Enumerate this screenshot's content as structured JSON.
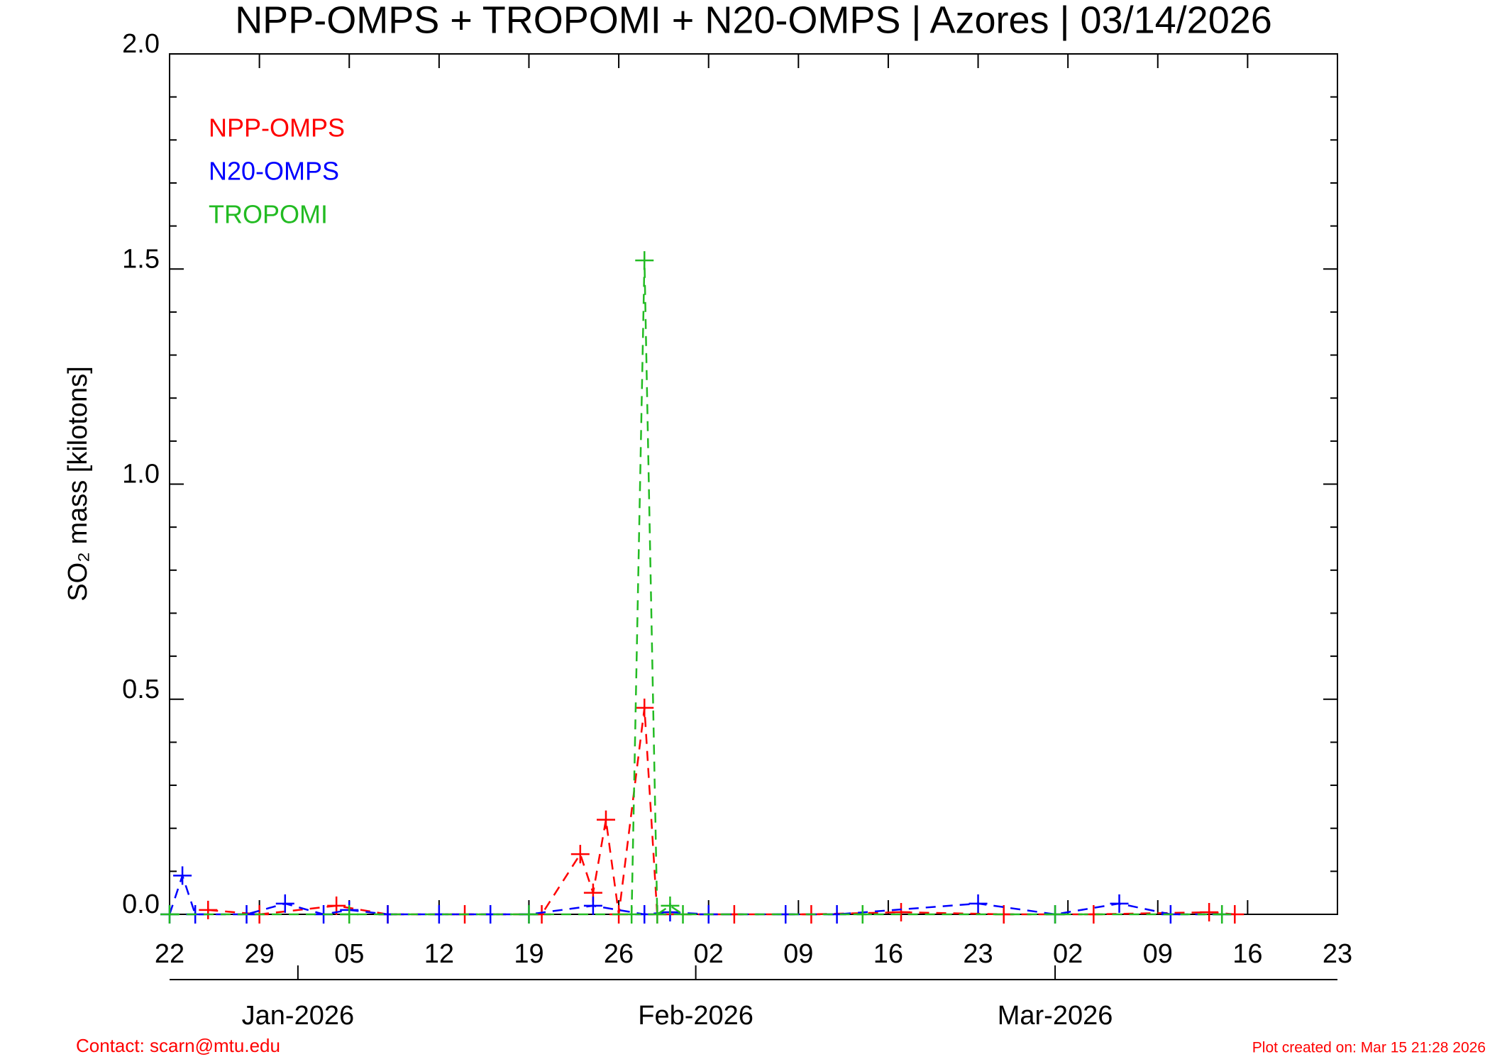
{
  "chart_data": {
    "type": "line",
    "title": "NPP-OMPS + TROPOMI + N20-OMPS | Azores | 03/14/2026",
    "y_label": "SO₂ mass [kilotons]",
    "contact": "Contact: scarn@mtu.edu",
    "created": "Plot created on: Mar 15 21:28 2026",
    "xlim": [
      "2025-12-22",
      "2026-03-23"
    ],
    "xticks": [
      {
        "value": "2025-12-22",
        "label": "22"
      },
      {
        "value": "2025-12-29",
        "label": "29"
      },
      {
        "value": "2026-01-05",
        "label": "05"
      },
      {
        "value": "2026-01-12",
        "label": "12"
      },
      {
        "value": "2026-01-19",
        "label": "19"
      },
      {
        "value": "2026-01-26",
        "label": "26"
      },
      {
        "value": "2026-02-02",
        "label": "02"
      },
      {
        "value": "2026-02-09",
        "label": "09"
      },
      {
        "value": "2026-02-16",
        "label": "16"
      },
      {
        "value": "2026-02-23",
        "label": "23"
      },
      {
        "value": "2026-03-02",
        "label": "02"
      },
      {
        "value": "2026-03-09",
        "label": "09"
      },
      {
        "value": "2026-03-16",
        "label": "16"
      },
      {
        "value": "2026-03-23",
        "label": "23"
      }
    ],
    "month_ticks": [
      {
        "value": "2026-01-01",
        "label": "Jan-2026"
      },
      {
        "value": "2026-02-01",
        "label": "Feb-2026"
      },
      {
        "value": "2026-03-01",
        "label": "Mar-2026"
      }
    ],
    "ylim": [
      0,
      2.0
    ],
    "yticks": [
      {
        "value": 0,
        "label": "0.0"
      },
      0.5,
      {
        "value": 1,
        "label": "1.0"
      },
      1.5,
      {
        "value": 2,
        "label": "2.0"
      }
    ],
    "yminorticks": [
      0.1,
      0.2,
      0.3,
      0.4,
      0.6,
      0.7,
      0.8,
      0.9,
      1.1,
      1.2,
      1.3,
      1.4,
      1.6,
      1.7,
      1.8,
      1.9
    ],
    "legend": "upper left",
    "series": [
      {
        "name": "NPP-OMPS",
        "color": "#ff0000",
        "x": [
          "2025-12-25",
          "2025-12-29",
          "2026-01-04",
          "2026-01-08",
          "2026-01-14",
          "2026-01-20",
          "2026-01-23",
          "2026-01-24",
          "2026-01-25",
          "2026-01-26",
          "2026-01-28",
          "2026-01-29",
          "2026-02-04",
          "2026-02-10",
          "2026-02-17",
          "2026-02-25",
          "2026-03-04",
          "2026-03-13",
          "2026-03-15"
        ],
        "values": [
          0.01,
          0,
          0.02,
          0,
          0,
          0,
          0.14,
          0.05,
          0.22,
          0,
          0.48,
          0,
          0,
          0,
          0.005,
          0,
          0,
          0.005,
          0
        ]
      },
      {
        "name": "N20-OMPS",
        "color": "#0000ff",
        "x": [
          "2025-12-22",
          "2025-12-23",
          "2025-12-24",
          "2025-12-28",
          "2025-12-31",
          "2026-01-03",
          "2026-01-05",
          "2026-01-08",
          "2026-01-12",
          "2026-01-16",
          "2026-01-19",
          "2026-01-24",
          "2026-01-28",
          "2026-01-30",
          "2026-02-02",
          "2026-02-08",
          "2026-02-12",
          "2026-02-23",
          "2026-03-01",
          "2026-03-06",
          "2026-03-10",
          "2026-03-14"
        ],
        "values": [
          0,
          0.09,
          0,
          0,
          0.025,
          0,
          0.01,
          0,
          0,
          0,
          0,
          0.02,
          0,
          0.005,
          0,
          0,
          0,
          0.025,
          0,
          0.025,
          0,
          0
        ]
      },
      {
        "name": "TROPOMI",
        "color": "#22bb22",
        "x": [
          "2025-12-22",
          "2026-01-05",
          "2026-01-19",
          "2026-01-27",
          "2026-01-28",
          "2026-01-29",
          "2026-01-30",
          "2026-01-31",
          "2026-02-14",
          "2026-03-01",
          "2026-03-14"
        ],
        "values": [
          0,
          0,
          0,
          0,
          1.52,
          0,
          0.02,
          0,
          0,
          0,
          0
        ]
      }
    ]
  }
}
